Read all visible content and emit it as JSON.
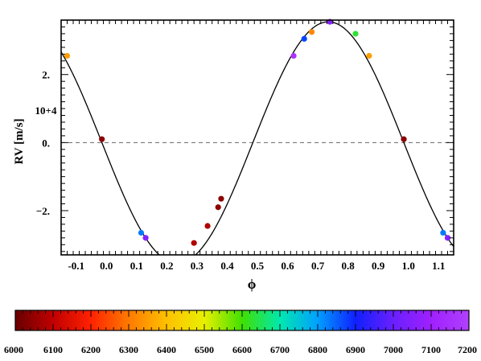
{
  "chart_data": {
    "type": "scatter",
    "xlabel": "ϕ",
    "ylabel": "RV [m/s]",
    "y_multiplier_label": "10+4",
    "xlim": [
      -0.15,
      1.15
    ],
    "ylim": [
      -3.3,
      3.6
    ],
    "x_ticks": [
      -0.1,
      0.0,
      0.1,
      0.2,
      0.3,
      0.4,
      0.5,
      0.6,
      0.7,
      0.8,
      0.9,
      1.0,
      1.1
    ],
    "x_tick_labels": [
      "-0.1",
      "0.0",
      "0.1",
      "0.2",
      "0.3",
      "0.4",
      "0.5",
      "0.6",
      "0.7",
      "0.8",
      "0.9",
      "1.0",
      "1.1"
    ],
    "y_ticks": [
      2.0,
      0.0,
      -2.0
    ],
    "y_tick_labels": [
      "2.",
      "0.",
      "−2."
    ],
    "zero_line": true,
    "curve": {
      "amplitude": 3.55,
      "offset": 0.0,
      "phase_of_zero": -0.015,
      "color": "#000000"
    },
    "points": [
      {
        "x": -0.13,
        "y": 2.55,
        "c": 6350
      },
      {
        "x": -0.015,
        "y": 0.1,
        "c": 6040
      },
      {
        "x": 0.115,
        "y": -2.65,
        "c": 6830
      },
      {
        "x": 0.13,
        "y": -2.8,
        "c": 7050
      },
      {
        "x": 0.29,
        "y": -2.95,
        "c": 6080
      },
      {
        "x": 0.335,
        "y": -2.45,
        "c": 6080
      },
      {
        "x": 0.37,
        "y": -1.9,
        "c": 6040
      },
      {
        "x": 0.38,
        "y": -1.65,
        "c": 6040
      },
      {
        "x": 0.62,
        "y": 2.55,
        "c": 7160
      },
      {
        "x": 0.655,
        "y": 3.05,
        "c": 6870
      },
      {
        "x": 0.68,
        "y": 3.25,
        "c": 6320
      },
      {
        "x": 0.74,
        "y": 3.55,
        "c": 7050
      },
      {
        "x": 0.825,
        "y": 3.2,
        "c": 6630
      },
      {
        "x": 0.87,
        "y": 2.55,
        "c": 6350
      },
      {
        "x": 0.985,
        "y": 0.1,
        "c": 6040
      },
      {
        "x": 1.115,
        "y": -2.65,
        "c": 6830
      },
      {
        "x": 1.13,
        "y": -2.8,
        "c": 7050
      }
    ],
    "colorbar": {
      "min": 6000,
      "max": 7200,
      "tick_labels": [
        "6000",
        "6100",
        "6200",
        "6300",
        "6400",
        "6500",
        "6600",
        "6700",
        "6800",
        "6900",
        "7000",
        "7100",
        "7200"
      ],
      "stops": [
        "#6a0000",
        "#c00000",
        "#ff2200",
        "#ff7a00",
        "#ffc000",
        "#e8f000",
        "#40e000",
        "#00e8b0",
        "#00a0ff",
        "#1020ff",
        "#6a20ff",
        "#a020ff",
        "#b040ff"
      ]
    }
  }
}
